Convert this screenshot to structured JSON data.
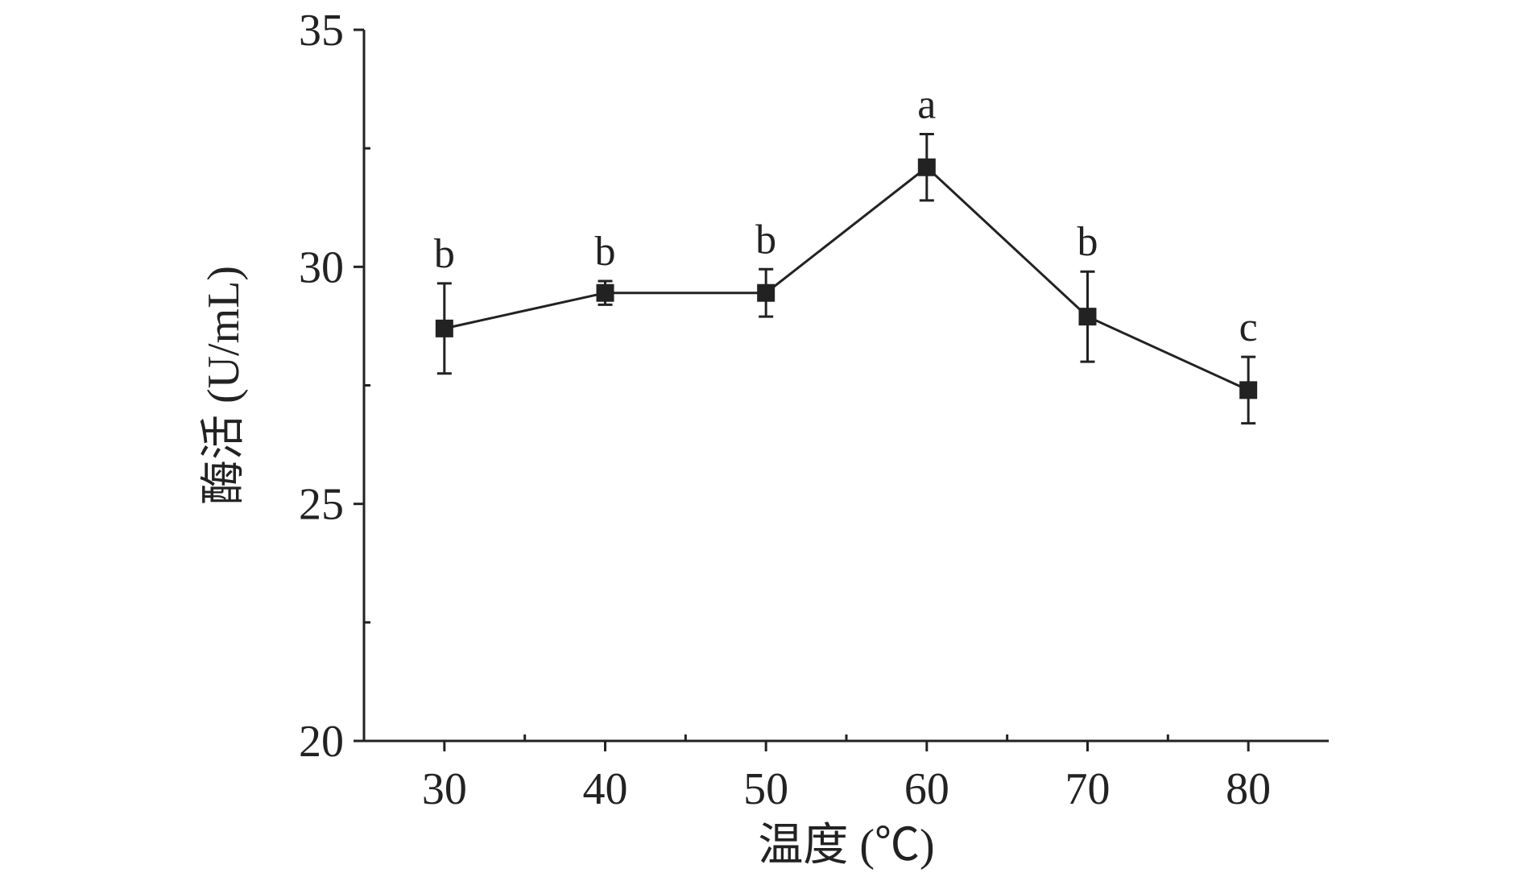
{
  "chart_data": {
    "type": "line",
    "xlabel": "温度 (℃)",
    "ylabel": "酶活 (U/mL)",
    "xlim": [
      25,
      85
    ],
    "ylim": [
      20,
      35
    ],
    "x_ticks": [
      30,
      40,
      50,
      60,
      70,
      80
    ],
    "y_ticks": [
      20,
      25,
      30,
      35
    ],
    "grid": false,
    "legend": "none",
    "marker": "square",
    "color": "#222222",
    "series": [
      {
        "x": [
          30,
          40,
          50,
          60,
          70,
          80
        ],
        "y": [
          28.7,
          29.45,
          29.45,
          32.1,
          28.95,
          27.4
        ],
        "error": [
          0.95,
          0.25,
          0.5,
          0.7,
          0.95,
          0.7
        ],
        "labels": [
          "b",
          "b",
          "b",
          "a",
          "b",
          "c"
        ]
      }
    ]
  }
}
